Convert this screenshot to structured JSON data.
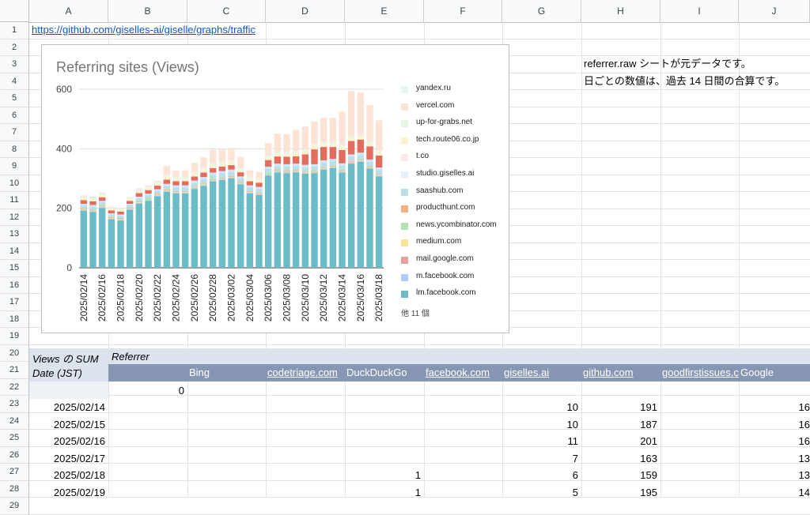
{
  "columns": [
    "A",
    "B",
    "C",
    "D",
    "E",
    "F",
    "G",
    "H",
    "I",
    "J"
  ],
  "rows": [
    "1",
    "2",
    "3",
    "4",
    "5",
    "6",
    "7",
    "8",
    "9",
    "10",
    "11",
    "12",
    "13",
    "14",
    "15",
    "16",
    "17",
    "18",
    "19",
    "20",
    "21",
    "22",
    "23",
    "24",
    "25",
    "26",
    "27",
    "28",
    "29"
  ],
  "cells": {
    "a1_link": "https://github.com/giselles-ai/giselle/graphs/traffic",
    "h3_note": "referrer.raw シートが元データです。",
    "h4_note": "日ごとの数値は、過去 14 日間の合算です。"
  },
  "pivot": {
    "corner_label": "Views の SUM",
    "referrer_label": "Referrer",
    "date_label": "Date (JST)",
    "headers": [
      "Bing",
      "codetriage.com",
      "DuckDuckGo",
      "facebook.com",
      "giselles.ai",
      "github.com",
      "goodfirstissues.c",
      "Google"
    ],
    "header_links": [
      false,
      true,
      false,
      true,
      true,
      true,
      true,
      false
    ],
    "row23_b": "0",
    "data_rows": [
      {
        "date": "2025/02/14",
        "e": "",
        "g": "10",
        "h": "191",
        "j": "16"
      },
      {
        "date": "2025/02/15",
        "e": "",
        "g": "10",
        "h": "187",
        "j": "16"
      },
      {
        "date": "2025/02/16",
        "e": "",
        "g": "11",
        "h": "201",
        "j": "16"
      },
      {
        "date": "2025/02/17",
        "e": "",
        "g": "7",
        "h": "163",
        "j": "13"
      },
      {
        "date": "2025/02/18",
        "e": "1",
        "g": "6",
        "h": "159",
        "j": "13"
      },
      {
        "date": "2025/02/19",
        "e": "1",
        "g": "5",
        "h": "195",
        "j": "14"
      }
    ]
  },
  "chart_data": {
    "type": "bar",
    "stacked": true,
    "title": "Referring sites (Views)",
    "ylim": [
      0,
      600
    ],
    "yticks": [
      "0",
      "200",
      "400",
      "600"
    ],
    "grid": true,
    "legend_position": "right",
    "legend_more": "他 11 個",
    "x_labels": [
      "2025/02/14",
      "2025/02/16",
      "2025/02/18",
      "2025/02/20",
      "2025/02/22",
      "2025/02/24",
      "2025/02/26",
      "2025/02/28",
      "2025/03/02",
      "2025/03/04",
      "2025/03/06",
      "2025/03/08",
      "2025/03/10",
      "2025/03/12",
      "2025/03/14",
      "2025/03/16",
      "2025/03/18"
    ],
    "dates": [
      "2025/02/14",
      "2025/02/15",
      "2025/02/16",
      "2025/02/17",
      "2025/02/18",
      "2025/02/19",
      "2025/02/20",
      "2025/02/21",
      "2025/02/22",
      "2025/02/23",
      "2025/02/24",
      "2025/02/25",
      "2025/02/26",
      "2025/02/27",
      "2025/02/28",
      "2025/03/01",
      "2025/03/02",
      "2025/03/03",
      "2025/03/04",
      "2025/03/05",
      "2025/03/06",
      "2025/03/07",
      "2025/03/08",
      "2025/03/09",
      "2025/03/10",
      "2025/03/11",
      "2025/03/12",
      "2025/03/13",
      "2025/03/14",
      "2025/03/15",
      "2025/03/16",
      "2025/03/17",
      "2025/03/18"
    ],
    "series": [
      {
        "name": "lm.facebook.com",
        "color": "#6cbcc7",
        "values": [
          191,
          187,
          201,
          163,
          159,
          195,
          215,
          225,
          240,
          255,
          250,
          250,
          265,
          275,
          290,
          295,
          300,
          280,
          250,
          245,
          310,
          320,
          318,
          320,
          316,
          318,
          330,
          335,
          320,
          350,
          356,
          333,
          307
        ]
      },
      {
        "name": "m.facebook.com",
        "color": "#aecbfa",
        "values": [
          2,
          2,
          2,
          1,
          1,
          1,
          2,
          2,
          2,
          2,
          2,
          2,
          2,
          2,
          2,
          2,
          2,
          2,
          2,
          2,
          2,
          2,
          2,
          2,
          2,
          2,
          2,
          2,
          2,
          2,
          2,
          2,
          2
        ]
      },
      {
        "name": "mail.google.com",
        "color": "#e8a09a",
        "values": [
          1,
          1,
          1,
          1,
          1,
          1,
          1,
          1,
          1,
          1,
          1,
          1,
          1,
          1,
          1,
          1,
          1,
          1,
          1,
          1,
          1,
          1,
          1,
          1,
          1,
          1,
          1,
          1,
          1,
          1,
          1,
          1,
          1
        ]
      },
      {
        "name": "medium.com",
        "color": "#fde293",
        "values": [
          1,
          1,
          1,
          1,
          1,
          1,
          1,
          1,
          1,
          1,
          1,
          1,
          1,
          1,
          1,
          1,
          1,
          1,
          1,
          1,
          1,
          1,
          1,
          1,
          1,
          1,
          1,
          1,
          1,
          1,
          1,
          1,
          1
        ]
      },
      {
        "name": "news.ycombinator.com",
        "color": "#b7dfb9",
        "values": [
          2,
          2,
          2,
          2,
          2,
          2,
          2,
          2,
          2,
          2,
          2,
          2,
          2,
          2,
          2,
          2,
          2,
          2,
          2,
          2,
          2,
          2,
          2,
          2,
          2,
          2,
          2,
          2,
          2,
          2,
          2,
          2,
          2
        ]
      },
      {
        "name": "producthunt.com",
        "color": "#f4b07d",
        "values": [
          2,
          2,
          2,
          2,
          2,
          2,
          2,
          2,
          2,
          2,
          2,
          2,
          2,
          2,
          2,
          2,
          2,
          2,
          2,
          2,
          2,
          2,
          2,
          2,
          2,
          2,
          2,
          2,
          2,
          2,
          2,
          2,
          2
        ]
      },
      {
        "name": "saashub.com",
        "color": "#b9e0e7",
        "values": [
          10,
          10,
          10,
          8,
          8,
          8,
          10,
          10,
          10,
          12,
          12,
          12,
          12,
          14,
          14,
          14,
          14,
          12,
          12,
          12,
          14,
          14,
          14,
          14,
          14,
          14,
          15,
          15,
          15,
          15,
          15,
          15,
          14
        ]
      },
      {
        "name": "studio.giselles.ai",
        "color": "#d2e3fc",
        "values": [
          6,
          6,
          6,
          5,
          5,
          5,
          6,
          6,
          6,
          7,
          7,
          7,
          8,
          8,
          8,
          8,
          8,
          7,
          7,
          7,
          8,
          8,
          8,
          8,
          8,
          8,
          8,
          8,
          8,
          8,
          8,
          8,
          8
        ]
      },
      {
        "name": "t.co",
        "color": "#e36c5d",
        "values": [
          12,
          12,
          12,
          10,
          10,
          10,
          12,
          12,
          12,
          14,
          14,
          14,
          14,
          15,
          15,
          15,
          15,
          14,
          14,
          14,
          22,
          24,
          25,
          25,
          35,
          50,
          45,
          40,
          45,
          45,
          44,
          44,
          40
        ]
      },
      {
        "name": "tech.route06.co.jp",
        "color": "#fff3cf",
        "values": [
          8,
          8,
          8,
          6,
          6,
          6,
          8,
          8,
          8,
          10,
          10,
          10,
          10,
          10,
          10,
          12,
          12,
          10,
          10,
          10,
          10,
          10,
          10,
          12,
          12,
          12,
          12,
          12,
          12,
          12,
          12,
          12,
          12
        ]
      },
      {
        "name": "up-for-grabs.net",
        "color": "#e6f4ea",
        "values": [
          5,
          5,
          5,
          4,
          4,
          4,
          5,
          5,
          5,
          6,
          6,
          6,
          6,
          6,
          6,
          6,
          6,
          6,
          6,
          6,
          6,
          6,
          6,
          6,
          6,
          6,
          6,
          6,
          6,
          6,
          6,
          6,
          6
        ]
      },
      {
        "name": "vercel.com",
        "color": "#fce3d6",
        "values": [
          3,
          3,
          3,
          2,
          2,
          2,
          3,
          3,
          3,
          30,
          20,
          20,
          30,
          35,
          45,
          40,
          40,
          35,
          20,
          20,
          40,
          60,
          60,
          70,
          75,
          75,
          80,
          80,
          110,
          150,
          140,
          120,
          100
        ]
      },
      {
        "name": "yandex.ru",
        "color": "#e8f6f1",
        "values": [
          1,
          1,
          1,
          1,
          1,
          1,
          1,
          1,
          1,
          1,
          1,
          1,
          1,
          1,
          1,
          1,
          1,
          1,
          1,
          1,
          1,
          1,
          1,
          1,
          1,
          1,
          1,
          1,
          1,
          1,
          1,
          1,
          1
        ]
      }
    ],
    "legend": [
      "yandex.ru",
      "vercel.com",
      "up-for-grabs.net",
      "tech.route06.co.jp",
      "t.co",
      "studio.giselles.ai",
      "saashub.com",
      "producthunt.com",
      "news.ycombinator.com",
      "medium.com",
      "mail.google.com",
      "m.facebook.com",
      "lm.facebook.com"
    ],
    "legend_colors": [
      "#e8f6f1",
      "#fce3d6",
      "#e6f4ea",
      "#fff3cf",
      "#fce8e6",
      "#e8f0fe",
      "#b9e0e7",
      "#f4b07d",
      "#b7dfb9",
      "#fde293",
      "#e8a09a",
      "#aecbfa",
      "#6cbcc7"
    ]
  }
}
